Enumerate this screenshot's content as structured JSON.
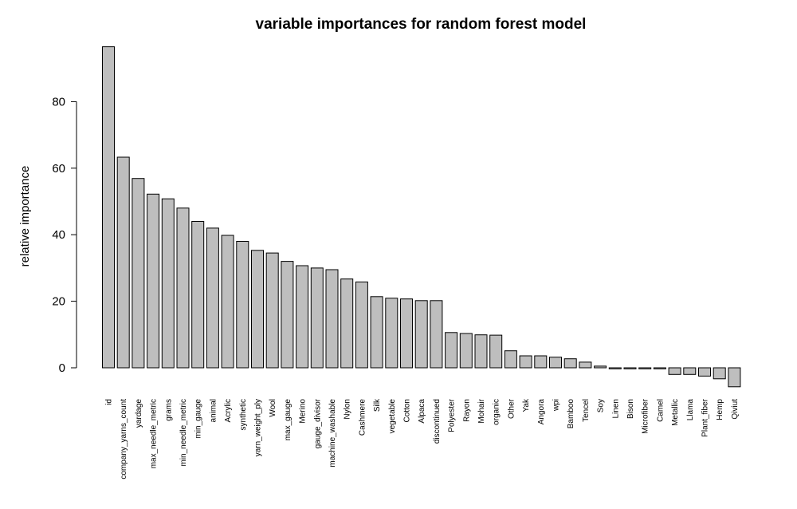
{
  "chart_data": {
    "type": "bar",
    "title": "variable importances for random forest model",
    "xlabel": "",
    "ylabel": "relative importance",
    "ylim": [
      -6,
      97
    ],
    "yticks": [
      0,
      20,
      40,
      60,
      80
    ],
    "grid": false,
    "categories": [
      "id",
      "company_yarns_count",
      "yardage",
      "max_needle_metric",
      "grams",
      "min_needle_metric",
      "min_gauge",
      "animal",
      "Acrylic",
      "synthetic",
      "yarn_weight_ply",
      "Wool",
      "max_gauge",
      "Merino",
      "gauge_divisor",
      "machine_washable",
      "Nylon",
      "Cashmere",
      "Silk",
      "vegetable",
      "Cotton",
      "Alpaca",
      "discontinued",
      "Polyester",
      "Rayon",
      "Mohair",
      "organic",
      "Other",
      "Yak",
      "Angora",
      "wpi",
      "Bamboo",
      "Tencel",
      "Soy",
      "Linen",
      "Bison",
      "Microfiber",
      "Camel",
      "Metallic",
      "Llama",
      "Plant_fiber",
      "Hemp",
      "Qiviut"
    ],
    "values": [
      96.5,
      63.3,
      56.9,
      52.2,
      50.8,
      48.0,
      44.0,
      42.0,
      39.8,
      38.0,
      35.3,
      34.5,
      32.0,
      30.7,
      30.0,
      29.5,
      26.7,
      25.8,
      21.4,
      20.9,
      20.7,
      20.2,
      20.2,
      10.6,
      10.3,
      9.9,
      9.8,
      5.1,
      3.6,
      3.6,
      3.2,
      2.7,
      1.7,
      0.5,
      -0.3,
      -0.3,
      -0.3,
      -0.3,
      -2.0,
      -2.0,
      -2.5,
      -3.3,
      -5.7
    ]
  }
}
